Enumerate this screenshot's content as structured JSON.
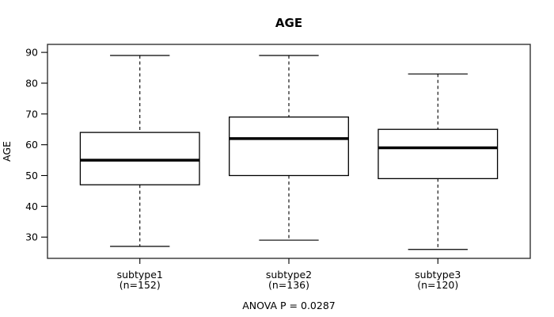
{
  "chart_data": {
    "type": "boxplot",
    "title": "AGE",
    "xlabel": "",
    "ylabel": "AGE",
    "annotation": "ANOVA P = 0.0287",
    "ylim": [
      23.1,
      92.6
    ],
    "yticks": [
      30,
      40,
      50,
      60,
      70,
      80,
      90
    ],
    "grid": false,
    "legend": "none",
    "groups": [
      {
        "label": "subtype1",
        "count_label": "(n=152)",
        "n": 152,
        "whisker_low": 27,
        "q1": 47,
        "median": 55,
        "q3": 64,
        "whisker_high": 89
      },
      {
        "label": "subtype2",
        "count_label": "(n=136)",
        "n": 136,
        "whisker_low": 29,
        "q1": 50,
        "median": 62,
        "q3": 69,
        "whisker_high": 89
      },
      {
        "label": "subtype3",
        "count_label": "(n=120)",
        "n": 120,
        "whisker_low": 26,
        "q1": 49,
        "median": 59,
        "q3": 65,
        "whisker_high": 83
      }
    ],
    "colors": {
      "line": "#000000",
      "border": "#333333",
      "box_fill": "#ffffff",
      "background": "#ffffff"
    }
  }
}
